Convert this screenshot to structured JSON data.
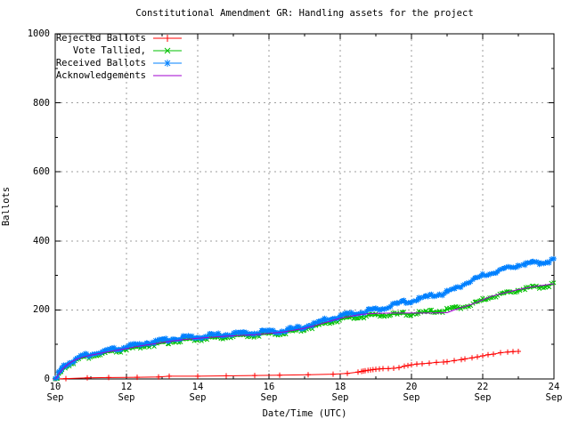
{
  "colors": {
    "background": "#ffffff",
    "border": "#000000",
    "grid": "#9e9e9e",
    "text": "#000000"
  },
  "chart_data": {
    "type": "line",
    "title": "Constitutional Amendment GR: Handling assets for the project",
    "xlabel": "Date/Time (UTC)",
    "ylabel": "Ballots",
    "x_unit": "September date (UTC)",
    "xlim": [
      10,
      24
    ],
    "ylim": [
      0,
      1000
    ],
    "grid": true,
    "legend_position": "top-left",
    "x_major_ticks": [
      {
        "day": "10",
        "month": "Sep"
      },
      {
        "day": "12",
        "month": "Sep"
      },
      {
        "day": "14",
        "month": "Sep"
      },
      {
        "day": "16",
        "month": "Sep"
      },
      {
        "day": "18",
        "month": "Sep"
      },
      {
        "day": "20",
        "month": "Sep"
      },
      {
        "day": "22",
        "month": "Sep"
      },
      {
        "day": "24",
        "month": "Sep"
      }
    ],
    "x_minor_days": [
      11,
      13,
      15,
      17,
      19,
      21,
      23
    ],
    "y_major_ticks": [
      0,
      200,
      400,
      600,
      800,
      1000
    ],
    "y_minor_ticks": [
      100,
      300,
      500,
      700,
      900
    ],
    "series": [
      {
        "name": "Rejected Ballots",
        "color": "#ff0000",
        "marker": "plus",
        "dense_markers": false,
        "points": [
          [
            10.0,
            0
          ],
          [
            10.3,
            1
          ],
          [
            10.9,
            3
          ],
          [
            11.5,
            4
          ],
          [
            12.3,
            5
          ],
          [
            12.9,
            6
          ],
          [
            13.2,
            8
          ],
          [
            14.0,
            8
          ],
          [
            14.8,
            9
          ],
          [
            15.6,
            10
          ],
          [
            16.3,
            11
          ],
          [
            17.1,
            12
          ],
          [
            17.8,
            14
          ],
          [
            18.2,
            16
          ],
          [
            18.5,
            20
          ],
          [
            18.6,
            22
          ],
          [
            18.65,
            23
          ],
          [
            18.7,
            24
          ],
          [
            18.78,
            25
          ],
          [
            18.85,
            26
          ],
          [
            18.92,
            27
          ],
          [
            19.0,
            28
          ],
          [
            19.1,
            29
          ],
          [
            19.2,
            30
          ],
          [
            19.35,
            30
          ],
          [
            19.5,
            31
          ],
          [
            19.65,
            33
          ],
          [
            19.8,
            37
          ],
          [
            19.9,
            39
          ],
          [
            20.0,
            41
          ],
          [
            20.15,
            43
          ],
          [
            20.3,
            44
          ],
          [
            20.5,
            46
          ],
          [
            20.7,
            48
          ],
          [
            20.9,
            49
          ],
          [
            21.0,
            50
          ],
          [
            21.2,
            53
          ],
          [
            21.4,
            56
          ],
          [
            21.5,
            58
          ],
          [
            21.7,
            61
          ],
          [
            21.85,
            64
          ],
          [
            22.0,
            67
          ],
          [
            22.15,
            70
          ],
          [
            22.3,
            72
          ],
          [
            22.5,
            76
          ],
          [
            22.7,
            78
          ],
          [
            22.85,
            79
          ],
          [
            23.0,
            80
          ]
        ]
      },
      {
        "name": "Vote Tallied,",
        "color": "#00c000",
        "marker": "cross",
        "dense_markers": true,
        "points": [
          [
            10.0,
            0
          ],
          [
            10.05,
            5
          ],
          [
            10.1,
            12
          ],
          [
            10.15,
            18
          ],
          [
            10.2,
            25
          ],
          [
            10.3,
            35
          ],
          [
            10.4,
            43
          ],
          [
            10.5,
            49
          ],
          [
            10.6,
            54
          ],
          [
            10.7,
            58
          ],
          [
            10.8,
            61
          ],
          [
            10.9,
            64
          ],
          [
            11.0,
            66
          ],
          [
            11.2,
            71
          ],
          [
            11.4,
            75
          ],
          [
            11.6,
            79
          ],
          [
            11.8,
            82
          ],
          [
            12.0,
            85
          ],
          [
            12.2,
            89
          ],
          [
            12.4,
            93
          ],
          [
            12.6,
            97
          ],
          [
            12.8,
            100
          ],
          [
            13.0,
            103
          ],
          [
            13.2,
            107
          ],
          [
            13.4,
            110
          ],
          [
            13.6,
            112
          ],
          [
            13.8,
            114
          ],
          [
            14.0,
            115
          ],
          [
            14.2,
            117
          ],
          [
            14.4,
            118
          ],
          [
            14.6,
            119
          ],
          [
            14.8,
            121
          ],
          [
            15.0,
            123
          ],
          [
            15.2,
            124
          ],
          [
            15.4,
            125
          ],
          [
            15.6,
            126
          ],
          [
            15.8,
            128
          ],
          [
            16.0,
            130
          ],
          [
            16.2,
            132
          ],
          [
            16.4,
            134
          ],
          [
            16.6,
            137
          ],
          [
            16.8,
            141
          ],
          [
            17.0,
            145
          ],
          [
            17.2,
            150
          ],
          [
            17.4,
            156
          ],
          [
            17.6,
            162
          ],
          [
            17.8,
            168
          ],
          [
            18.0,
            173
          ],
          [
            18.2,
            176
          ],
          [
            18.4,
            179
          ],
          [
            18.6,
            181
          ],
          [
            18.8,
            183
          ],
          [
            19.0,
            184
          ],
          [
            19.2,
            185
          ],
          [
            19.4,
            186
          ],
          [
            19.6,
            187
          ],
          [
            19.8,
            188
          ],
          [
            20.0,
            189
          ],
          [
            20.2,
            191
          ],
          [
            20.4,
            193
          ],
          [
            20.6,
            195
          ],
          [
            20.8,
            197
          ],
          [
            21.0,
            200
          ],
          [
            21.2,
            204
          ],
          [
            21.4,
            208
          ],
          [
            21.6,
            212
          ],
          [
            21.8,
            220
          ],
          [
            22.0,
            228
          ],
          [
            22.2,
            237
          ],
          [
            22.4,
            243
          ],
          [
            22.6,
            248
          ],
          [
            22.8,
            253
          ],
          [
            23.0,
            258
          ],
          [
            23.2,
            262
          ],
          [
            23.4,
            265
          ],
          [
            23.6,
            268
          ],
          [
            23.8,
            271
          ],
          [
            24.0,
            274
          ]
        ]
      },
      {
        "name": "Received Ballots",
        "color": "#0080ff",
        "marker": "star",
        "dense_markers": true,
        "points": [
          [
            10.0,
            2
          ],
          [
            10.05,
            8
          ],
          [
            10.1,
            16
          ],
          [
            10.15,
            22
          ],
          [
            10.2,
            30
          ],
          [
            10.3,
            40
          ],
          [
            10.4,
            48
          ],
          [
            10.5,
            54
          ],
          [
            10.6,
            59
          ],
          [
            10.7,
            63
          ],
          [
            10.8,
            66
          ],
          [
            10.9,
            69
          ],
          [
            11.0,
            72
          ],
          [
            11.2,
            77
          ],
          [
            11.4,
            81
          ],
          [
            11.6,
            85
          ],
          [
            11.8,
            89
          ],
          [
            12.0,
            93
          ],
          [
            12.2,
            97
          ],
          [
            12.4,
            101
          ],
          [
            12.6,
            105
          ],
          [
            12.8,
            108
          ],
          [
            13.0,
            111
          ],
          [
            13.2,
            115
          ],
          [
            13.4,
            118
          ],
          [
            13.6,
            120
          ],
          [
            13.8,
            121
          ],
          [
            14.0,
            122
          ],
          [
            14.2,
            124
          ],
          [
            14.4,
            126
          ],
          [
            14.6,
            127
          ],
          [
            14.8,
            129
          ],
          [
            15.0,
            130
          ],
          [
            15.2,
            131
          ],
          [
            15.4,
            133
          ],
          [
            15.6,
            134
          ],
          [
            15.8,
            135
          ],
          [
            16.0,
            137
          ],
          [
            16.2,
            138
          ],
          [
            16.4,
            141
          ],
          [
            16.6,
            144
          ],
          [
            16.8,
            148
          ],
          [
            17.0,
            152
          ],
          [
            17.2,
            158
          ],
          [
            17.4,
            165
          ],
          [
            17.6,
            172
          ],
          [
            17.8,
            178
          ],
          [
            18.0,
            183
          ],
          [
            18.2,
            187
          ],
          [
            18.4,
            191
          ],
          [
            18.6,
            194
          ],
          [
            18.8,
            198
          ],
          [
            19.0,
            201
          ],
          [
            19.2,
            204
          ],
          [
            19.4,
            211
          ],
          [
            19.6,
            218
          ],
          [
            19.8,
            222
          ],
          [
            20.0,
            227
          ],
          [
            20.2,
            231
          ],
          [
            20.4,
            237
          ],
          [
            20.6,
            241
          ],
          [
            20.8,
            246
          ],
          [
            21.0,
            251
          ],
          [
            21.2,
            258
          ],
          [
            21.4,
            270
          ],
          [
            21.6,
            281
          ],
          [
            21.8,
            290
          ],
          [
            22.0,
            299
          ],
          [
            22.2,
            306
          ],
          [
            22.4,
            313
          ],
          [
            22.6,
            319
          ],
          [
            22.8,
            325
          ],
          [
            23.0,
            330
          ],
          [
            23.2,
            333
          ],
          [
            23.4,
            336
          ],
          [
            23.6,
            338
          ],
          [
            23.8,
            341
          ],
          [
            24.0,
            343
          ]
        ]
      },
      {
        "name": "Acknowledgements",
        "color": "#a000d0",
        "marker": "none",
        "dense_markers": false,
        "points": [
          [
            10.0,
            0
          ],
          [
            10.1,
            14
          ],
          [
            10.2,
            28
          ],
          [
            10.3,
            38
          ],
          [
            10.4,
            46
          ],
          [
            10.5,
            52
          ],
          [
            10.6,
            57
          ],
          [
            10.8,
            64
          ],
          [
            11.0,
            69
          ],
          [
            11.3,
            75
          ],
          [
            11.6,
            81
          ],
          [
            12.0,
            88
          ],
          [
            12.4,
            96
          ],
          [
            12.8,
            102
          ],
          [
            13.2,
            109
          ],
          [
            13.6,
            114
          ],
          [
            14.0,
            118
          ],
          [
            14.4,
            121
          ],
          [
            14.8,
            124
          ],
          [
            15.2,
            126
          ],
          [
            15.6,
            128
          ],
          [
            16.0,
            132
          ],
          [
            16.4,
            136
          ],
          [
            16.8,
            143
          ],
          [
            17.0,
            147
          ],
          [
            17.2,
            152
          ],
          [
            17.4,
            158
          ],
          [
            17.6,
            164
          ],
          [
            17.8,
            170
          ],
          [
            18.0,
            176
          ],
          [
            18.2,
            180
          ],
          [
            18.4,
            184
          ],
          [
            18.6,
            187
          ],
          [
            18.8,
            189
          ],
          [
            19.0,
            190
          ],
          [
            19.5,
            191
          ],
          [
            20.0,
            191
          ],
          [
            20.5,
            191
          ],
          [
            21.0,
            192
          ],
          [
            21.2,
            200
          ],
          [
            21.4,
            207
          ],
          [
            21.6,
            213
          ],
          [
            21.8,
            221
          ],
          [
            22.0,
            229
          ],
          [
            22.2,
            238
          ],
          [
            22.4,
            244
          ],
          [
            22.6,
            249
          ],
          [
            22.8,
            254
          ],
          [
            23.0,
            259
          ],
          [
            23.2,
            263
          ],
          [
            23.4,
            267
          ],
          [
            23.6,
            270
          ],
          [
            23.8,
            273
          ],
          [
            24.0,
            276
          ]
        ]
      }
    ]
  }
}
